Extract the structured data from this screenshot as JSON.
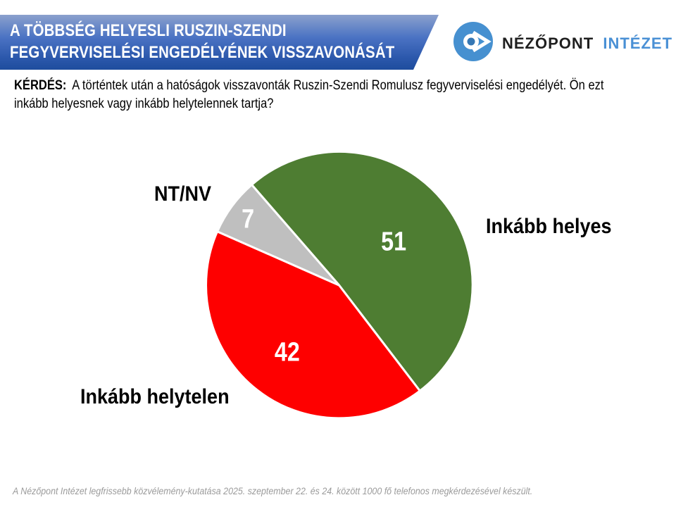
{
  "header": {
    "title_line1": "A TÖBBSÉG HELYESLI RUSZIN-SZENDI",
    "title_line2": "FEGYVERVISELÉSI ENGEDÉLYÉNEK VISSZAVONÁSÁT",
    "banner_color_top": "#8ba1cd",
    "banner_color_bottom": "#1e4d9d"
  },
  "logo": {
    "name_primary": "NÉZŐPONT",
    "name_secondary": "INTÉZET",
    "icon": "nezopont-eye-icon",
    "brand_blue": "#4690d0",
    "text_dark_color": "#1f1f1f",
    "text_blue_color": "#4a90d5"
  },
  "question": {
    "prefix": "KÉRDÉS:",
    "text": "A történtek után a hatóságok visszavonták Ruszin-Szendi Romulusz fegyverviselési engedélyét. Ön ezt inkább helyesnek vagy inkább helytelennek tartja?"
  },
  "chart_data": {
    "type": "pie",
    "unit": "percent",
    "slices": [
      {
        "label": "Inkább helyes",
        "value": 51,
        "color": "#4e7d32"
      },
      {
        "label": "Inkább helytelen",
        "value": 42,
        "color": "#fe0000"
      },
      {
        "label": "NT/NV",
        "value": 7,
        "color": "#bfbfbf"
      }
    ],
    "start_angle_deg": -41,
    "direction": "clockwise",
    "value_labels_position": "inside",
    "value_labels_color": "#ffffff",
    "category_labels_position": "outside",
    "slice_border_color": "#ffffff"
  },
  "footer": {
    "source_note": "A Nézőpont Intézet legfrissebb közvélemény-kutatása 2025. szeptember 22. és 24. között 1000 fő telefonos megkérdezésével készült."
  }
}
